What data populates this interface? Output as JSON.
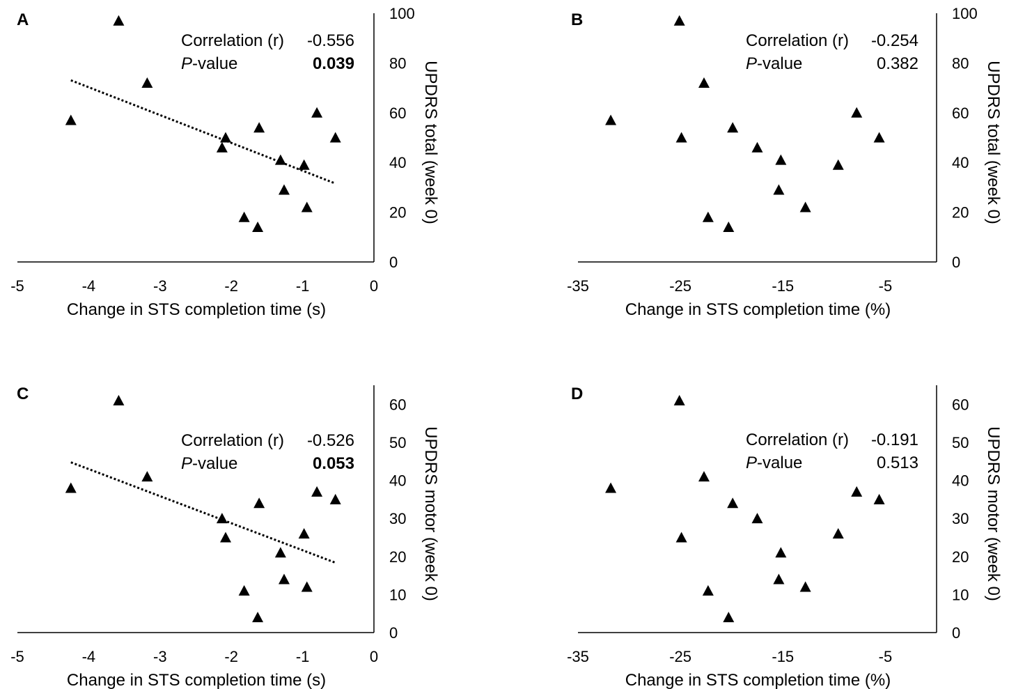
{
  "chart_data": [
    {
      "panel": "A",
      "type": "scatter",
      "xlabel": "Change in STS completion time (s)",
      "ylabel": "UPDRS total (week 0)",
      "xlim": [
        -5,
        0
      ],
      "ylim": [
        0,
        100
      ],
      "xticks": [
        -5,
        -4,
        -3,
        -2,
        -1,
        0
      ],
      "yticks": [
        0,
        20,
        40,
        60,
        80,
        100
      ],
      "correlation_label": "Correlation (r)",
      "correlation_value": "-0.556",
      "pvalue_prefix": "P",
      "pvalue_suffix": "-value",
      "pvalue_value": "0.039",
      "pvalue_bold": true,
      "trendline": true,
      "points": [
        {
          "x": -4.25,
          "y": 57
        },
        {
          "x": -3.58,
          "y": 97
        },
        {
          "x": -3.18,
          "y": 72
        },
        {
          "x": -2.13,
          "y": 46
        },
        {
          "x": -2.08,
          "y": 50
        },
        {
          "x": -1.82,
          "y": 18
        },
        {
          "x": -1.63,
          "y": 14
        },
        {
          "x": -1.61,
          "y": 54
        },
        {
          "x": -1.31,
          "y": 41
        },
        {
          "x": -1.26,
          "y": 29
        },
        {
          "x": -0.98,
          "y": 39
        },
        {
          "x": -0.94,
          "y": 22
        },
        {
          "x": -0.8,
          "y": 60
        },
        {
          "x": -0.54,
          "y": 50
        }
      ]
    },
    {
      "panel": "B",
      "type": "scatter",
      "xlabel": "Change in STS completion time (%)",
      "ylabel": "UPDRS total (week 0)",
      "xlim": [
        -35,
        0
      ],
      "ylim": [
        0,
        100
      ],
      "xticks": [
        -35,
        -25,
        -15,
        -5
      ],
      "yticks": [
        0,
        20,
        40,
        60,
        80,
        100
      ],
      "correlation_label": "Correlation (r)",
      "correlation_value": "-0.254",
      "pvalue_prefix": "P",
      "pvalue_suffix": "-value",
      "pvalue_value": "0.382",
      "pvalue_bold": false,
      "trendline": false,
      "points": [
        {
          "x": -31.8,
          "y": 57
        },
        {
          "x": -25.1,
          "y": 97
        },
        {
          "x": -24.9,
          "y": 50
        },
        {
          "x": -22.7,
          "y": 72
        },
        {
          "x": -22.3,
          "y": 18
        },
        {
          "x": -20.3,
          "y": 14
        },
        {
          "x": -19.9,
          "y": 54
        },
        {
          "x": -17.5,
          "y": 46
        },
        {
          "x": -15.2,
          "y": 41
        },
        {
          "x": -15.4,
          "y": 29
        },
        {
          "x": -12.8,
          "y": 22
        },
        {
          "x": -9.6,
          "y": 39
        },
        {
          "x": -7.8,
          "y": 60
        },
        {
          "x": -5.6,
          "y": 50
        }
      ]
    },
    {
      "panel": "C",
      "type": "scatter",
      "xlabel": "Change in STS completion time (s)",
      "ylabel": "UPDRS motor (week 0)",
      "xlim": [
        -5,
        0
      ],
      "ylim": [
        0,
        65
      ],
      "xticks": [
        -5,
        -4,
        -3,
        -2,
        -1,
        0
      ],
      "yticks": [
        0,
        10,
        20,
        30,
        40,
        50,
        60
      ],
      "correlation_label": "Correlation (r)",
      "correlation_value": "-0.526",
      "pvalue_prefix": "P",
      "pvalue_suffix": "-value",
      "pvalue_value": "0.053",
      "pvalue_bold": true,
      "trendline": true,
      "points": [
        {
          "x": -4.25,
          "y": 38
        },
        {
          "x": -3.58,
          "y": 61
        },
        {
          "x": -3.18,
          "y": 41
        },
        {
          "x": -2.13,
          "y": 30
        },
        {
          "x": -2.08,
          "y": 25
        },
        {
          "x": -1.82,
          "y": 11
        },
        {
          "x": -1.63,
          "y": 4
        },
        {
          "x": -1.61,
          "y": 34
        },
        {
          "x": -1.31,
          "y": 21
        },
        {
          "x": -1.26,
          "y": 14
        },
        {
          "x": -0.98,
          "y": 26
        },
        {
          "x": -0.94,
          "y": 12
        },
        {
          "x": -0.8,
          "y": 37
        },
        {
          "x": -0.54,
          "y": 35
        }
      ]
    },
    {
      "panel": "D",
      "type": "scatter",
      "xlabel": "Change in STS completion time (%)",
      "ylabel": "UPDRS motor (week 0)",
      "xlim": [
        -35,
        0
      ],
      "ylim": [
        0,
        65
      ],
      "xticks": [
        -35,
        -25,
        -15,
        -5
      ],
      "yticks": [
        0,
        10,
        20,
        30,
        40,
        50,
        60
      ],
      "correlation_label": "Correlation (r)",
      "correlation_value": "-0.191",
      "pvalue_prefix": "P",
      "pvalue_suffix": "-value",
      "pvalue_value": "0.513",
      "pvalue_bold": false,
      "trendline": false,
      "points": [
        {
          "x": -31.8,
          "y": 38
        },
        {
          "x": -25.1,
          "y": 61
        },
        {
          "x": -24.9,
          "y": 25
        },
        {
          "x": -22.7,
          "y": 41
        },
        {
          "x": -22.3,
          "y": 11
        },
        {
          "x": -20.3,
          "y": 4
        },
        {
          "x": -19.9,
          "y": 34
        },
        {
          "x": -17.5,
          "y": 30
        },
        {
          "x": -15.2,
          "y": 21
        },
        {
          "x": -15.4,
          "y": 14
        },
        {
          "x": -12.8,
          "y": 12
        },
        {
          "x": -9.6,
          "y": 26
        },
        {
          "x": -7.8,
          "y": 37
        },
        {
          "x": -5.6,
          "y": 35
        }
      ]
    }
  ]
}
